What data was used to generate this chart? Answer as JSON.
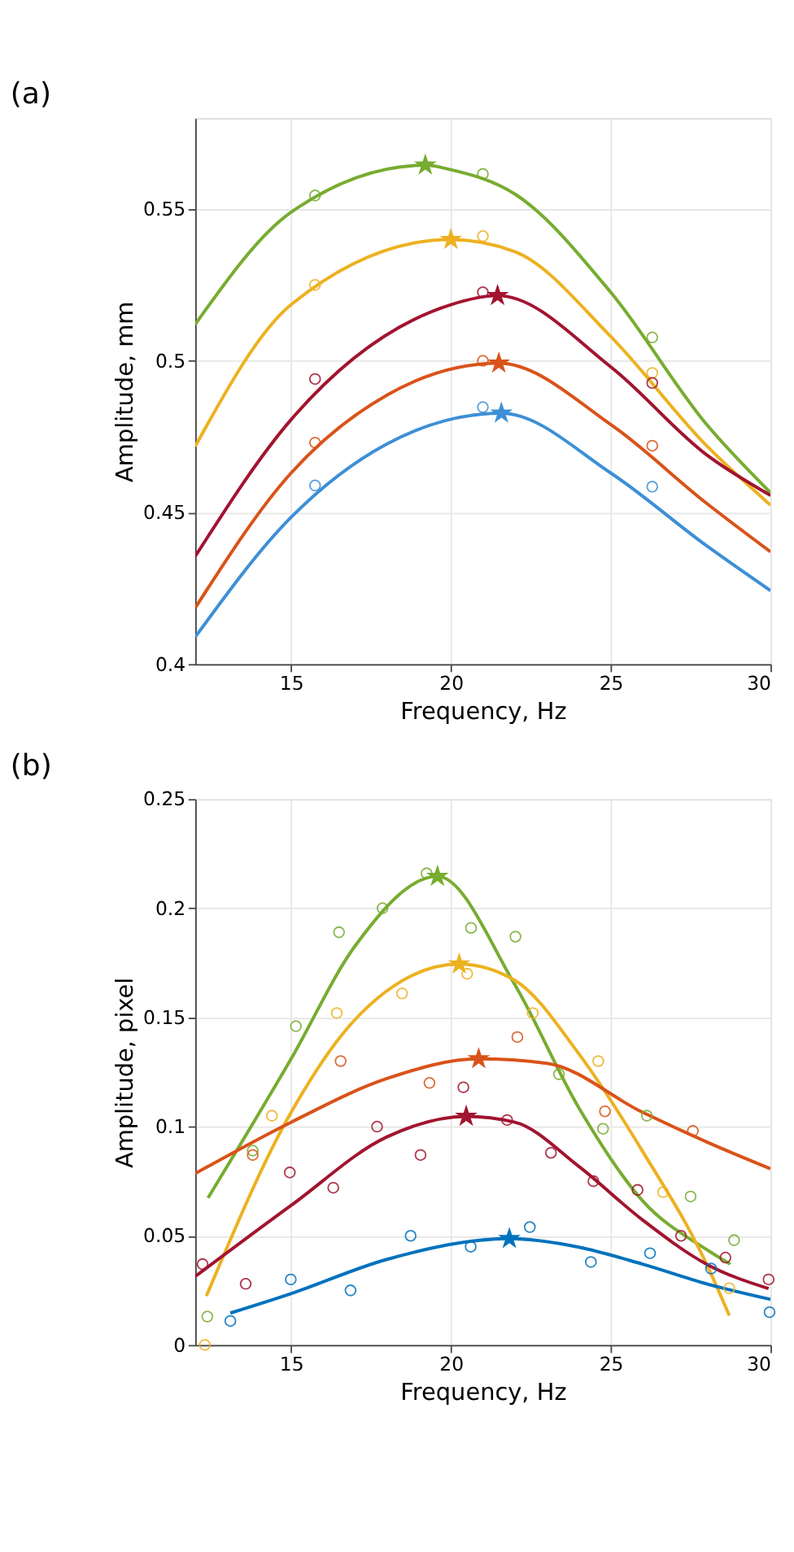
{
  "chart_data": [
    {
      "type": "line",
      "title": "(a)",
      "xlabel": "Frequency, Hz",
      "ylabel": "Amplitude, mm",
      "xlim": [
        12,
        30
      ],
      "xticks": [
        15,
        20,
        25,
        30
      ],
      "ylim": [
        0.4,
        0.58
      ],
      "yticks": [
        0.4,
        0.45,
        0.5,
        0.55
      ],
      "grid": true,
      "series": [
        {
          "marker": "none",
          "color": "#77ac30",
          "x": [
            12,
            15,
            19.2,
            20,
            22,
            25,
            28,
            30
          ],
          "values": [
            0.512,
            0.549,
            0.5645,
            0.563,
            0.555,
            0.5226,
            0.479,
            0.4565
          ]
        },
        {
          "marker": "none",
          "color": "#edb120",
          "x": [
            12,
            15,
            20,
            22,
            25,
            28,
            30
          ],
          "values": [
            0.4718,
            0.5185,
            0.54,
            0.536,
            0.508,
            0.472,
            0.4524
          ]
        },
        {
          "marker": "none",
          "color": "#a2142f",
          "x": [
            12,
            15,
            20,
            21.46,
            25,
            28,
            30
          ],
          "values": [
            0.4355,
            0.4806,
            0.5185,
            0.5215,
            0.498,
            0.469,
            0.4556
          ]
        },
        {
          "marker": "none",
          "color": "#d95319",
          "x": [
            12,
            15,
            18,
            21.5,
            25,
            28,
            30
          ],
          "values": [
            0.4185,
            0.463,
            0.4887,
            0.4992,
            0.479,
            0.453,
            0.437
          ]
        },
        {
          "marker": "none",
          "color": "#3d8fd6",
          "x": [
            12,
            15,
            18,
            21.58,
            25,
            28,
            30
          ],
          "values": [
            0.4089,
            0.4484,
            0.4726,
            0.4827,
            0.463,
            0.439,
            0.4242
          ]
        },
        {
          "type": "scatter",
          "marker": "circle",
          "color": "#77ac30",
          "x": [
            15.75,
            21.0,
            26.3
          ],
          "values": [
            0.5545,
            0.5616,
            0.5077
          ]
        },
        {
          "type": "scatter",
          "marker": "circle",
          "color": "#edb120",
          "x": [
            15.75,
            21.0,
            26.3
          ],
          "values": [
            0.525,
            0.5411,
            0.496
          ]
        },
        {
          "type": "scatter",
          "marker": "circle",
          "color": "#a2142f",
          "x": [
            15.75,
            21.0,
            26.3
          ],
          "values": [
            0.494,
            0.5226,
            0.4927
          ]
        },
        {
          "type": "scatter",
          "marker": "circle",
          "color": "#d95319",
          "x": [
            15.75,
            21.0,
            26.3
          ],
          "values": [
            0.473,
            0.5,
            0.472
          ]
        },
        {
          "type": "scatter",
          "marker": "circle",
          "color": "#3d8fd6",
          "x": [
            15.75,
            21.0,
            26.3
          ],
          "values": [
            0.4589,
            0.4847,
            0.4585
          ]
        },
        {
          "type": "scatter",
          "marker": "star",
          "color": "#77ac30",
          "x": [
            19.2
          ],
          "values": [
            0.5645
          ]
        },
        {
          "type": "scatter",
          "marker": "star",
          "color": "#edb120",
          "x": [
            20.0
          ],
          "values": [
            0.54
          ]
        },
        {
          "type": "scatter",
          "marker": "star",
          "color": "#a2142f",
          "x": [
            21.46
          ],
          "values": [
            0.5215
          ]
        },
        {
          "type": "scatter",
          "marker": "star",
          "color": "#d95319",
          "x": [
            21.5
          ],
          "values": [
            0.4992
          ]
        },
        {
          "type": "scatter",
          "marker": "star",
          "color": "#3d8fd6",
          "x": [
            21.58
          ],
          "values": [
            0.4827
          ]
        }
      ]
    },
    {
      "type": "line",
      "title": "(b)",
      "xlabel": "Frequency, Hz",
      "ylabel": "Amplitude, pixel",
      "xlim": [
        12,
        30
      ],
      "xticks": [
        15,
        20,
        25,
        30
      ],
      "ylim": [
        0,
        0.25
      ],
      "yticks": [
        0,
        0.05,
        0.1,
        0.15,
        0.2,
        0.25
      ],
      "grid": true,
      "series": [
        {
          "marker": "none",
          "color": "#77ac30",
          "x": [
            12.4,
            15,
            17,
            19.58,
            22,
            24,
            26,
            28,
            28.74
          ],
          "values": [
            0.0673,
            0.131,
            0.1827,
            0.2146,
            0.165,
            0.1087,
            0.066,
            0.0437,
            0.037
          ]
        },
        {
          "marker": "none",
          "color": "#edb120",
          "x": [
            12.35,
            15,
            17,
            20.26,
            22,
            24,
            26,
            28,
            28.71
          ],
          "values": [
            0.0224,
            0.1065,
            0.149,
            0.1744,
            0.167,
            0.1334,
            0.0886,
            0.037,
            0.0135
          ]
        },
        {
          "marker": "none",
          "color": "#d95319",
          "x": [
            12,
            15,
            18,
            20.87,
            23,
            26,
            28,
            30
          ],
          "values": [
            0.0785,
            0.102,
            0.122,
            0.131,
            0.129,
            0.1065,
            0.093,
            0.0807
          ]
        },
        {
          "marker": "none",
          "color": "#a2142f",
          "x": [
            12,
            15,
            18,
            20.48,
            22,
            24,
            26,
            28,
            29.94
          ],
          "values": [
            0.0314,
            0.0639,
            0.0953,
            0.1047,
            0.102,
            0.0818,
            0.0572,
            0.037,
            0.0258
          ]
        },
        {
          "marker": "none",
          "color": "#0072bd",
          "x": [
            13.1,
            15,
            18,
            21.83,
            24,
            26,
            28,
            30
          ],
          "values": [
            0.0146,
            0.0235,
            0.0392,
            0.0487,
            0.0448,
            0.037,
            0.028,
            0.0209
          ]
        },
        {
          "type": "scatter",
          "marker": "circle",
          "color": "#77ac30",
          "x": [
            12.38,
            13.8,
            15.15,
            16.5,
            17.86,
            19.24,
            20.63,
            22.02,
            23.38,
            24.76,
            26.13,
            27.5,
            28.86
          ],
          "values": [
            0.013,
            0.089,
            0.146,
            0.189,
            0.2,
            0.216,
            0.191,
            0.187,
            0.124,
            0.099,
            0.105,
            0.068,
            0.048
          ]
        },
        {
          "type": "scatter",
          "marker": "circle",
          "color": "#edb120",
          "x": [
            12.3,
            14.4,
            16.43,
            18.47,
            20.51,
            22.56,
            24.61,
            26.64,
            28.71
          ],
          "values": [
            0.0,
            0.105,
            0.152,
            0.161,
            0.17,
            0.152,
            0.13,
            0.07,
            0.026
          ]
        },
        {
          "type": "scatter",
          "marker": "circle",
          "color": "#d95319",
          "x": [
            13.8,
            16.55,
            19.33,
            22.08,
            24.82,
            27.57
          ],
          "values": [
            0.087,
            0.13,
            0.12,
            0.141,
            0.107,
            0.098
          ]
        },
        {
          "type": "scatter",
          "marker": "circle",
          "color": "#a2142f",
          "x": [
            12.23,
            13.58,
            14.96,
            16.32,
            17.69,
            19.05,
            20.39,
            21.76,
            23.13,
            24.46,
            25.84,
            27.2,
            28.59,
            29.94
          ],
          "values": [
            0.037,
            0.028,
            0.079,
            0.072,
            0.1,
            0.087,
            0.118,
            0.103,
            0.088,
            0.075,
            0.071,
            0.05,
            0.04,
            0.03
          ]
        },
        {
          "type": "scatter",
          "marker": "circle",
          "color": "#0072bd",
          "x": [
            13.1,
            14.99,
            16.86,
            18.74,
            20.62,
            22.47,
            24.38,
            26.23,
            28.14,
            29.97
          ],
          "values": [
            0.011,
            0.03,
            0.025,
            0.05,
            0.045,
            0.054,
            0.038,
            0.042,
            0.035,
            0.015
          ]
        },
        {
          "type": "scatter",
          "marker": "star",
          "color": "#77ac30",
          "x": [
            19.58
          ],
          "values": [
            0.2146
          ]
        },
        {
          "type": "scatter",
          "marker": "star",
          "color": "#edb120",
          "x": [
            20.26
          ],
          "values": [
            0.1744
          ]
        },
        {
          "type": "scatter",
          "marker": "star",
          "color": "#d95319",
          "x": [
            20.87
          ],
          "values": [
            0.131
          ]
        },
        {
          "type": "scatter",
          "marker": "star",
          "color": "#a2142f",
          "x": [
            20.48
          ],
          "values": [
            0.1047
          ]
        },
        {
          "type": "scatter",
          "marker": "star",
          "color": "#0072bd",
          "x": [
            21.83
          ],
          "values": [
            0.0487
          ]
        }
      ]
    }
  ]
}
